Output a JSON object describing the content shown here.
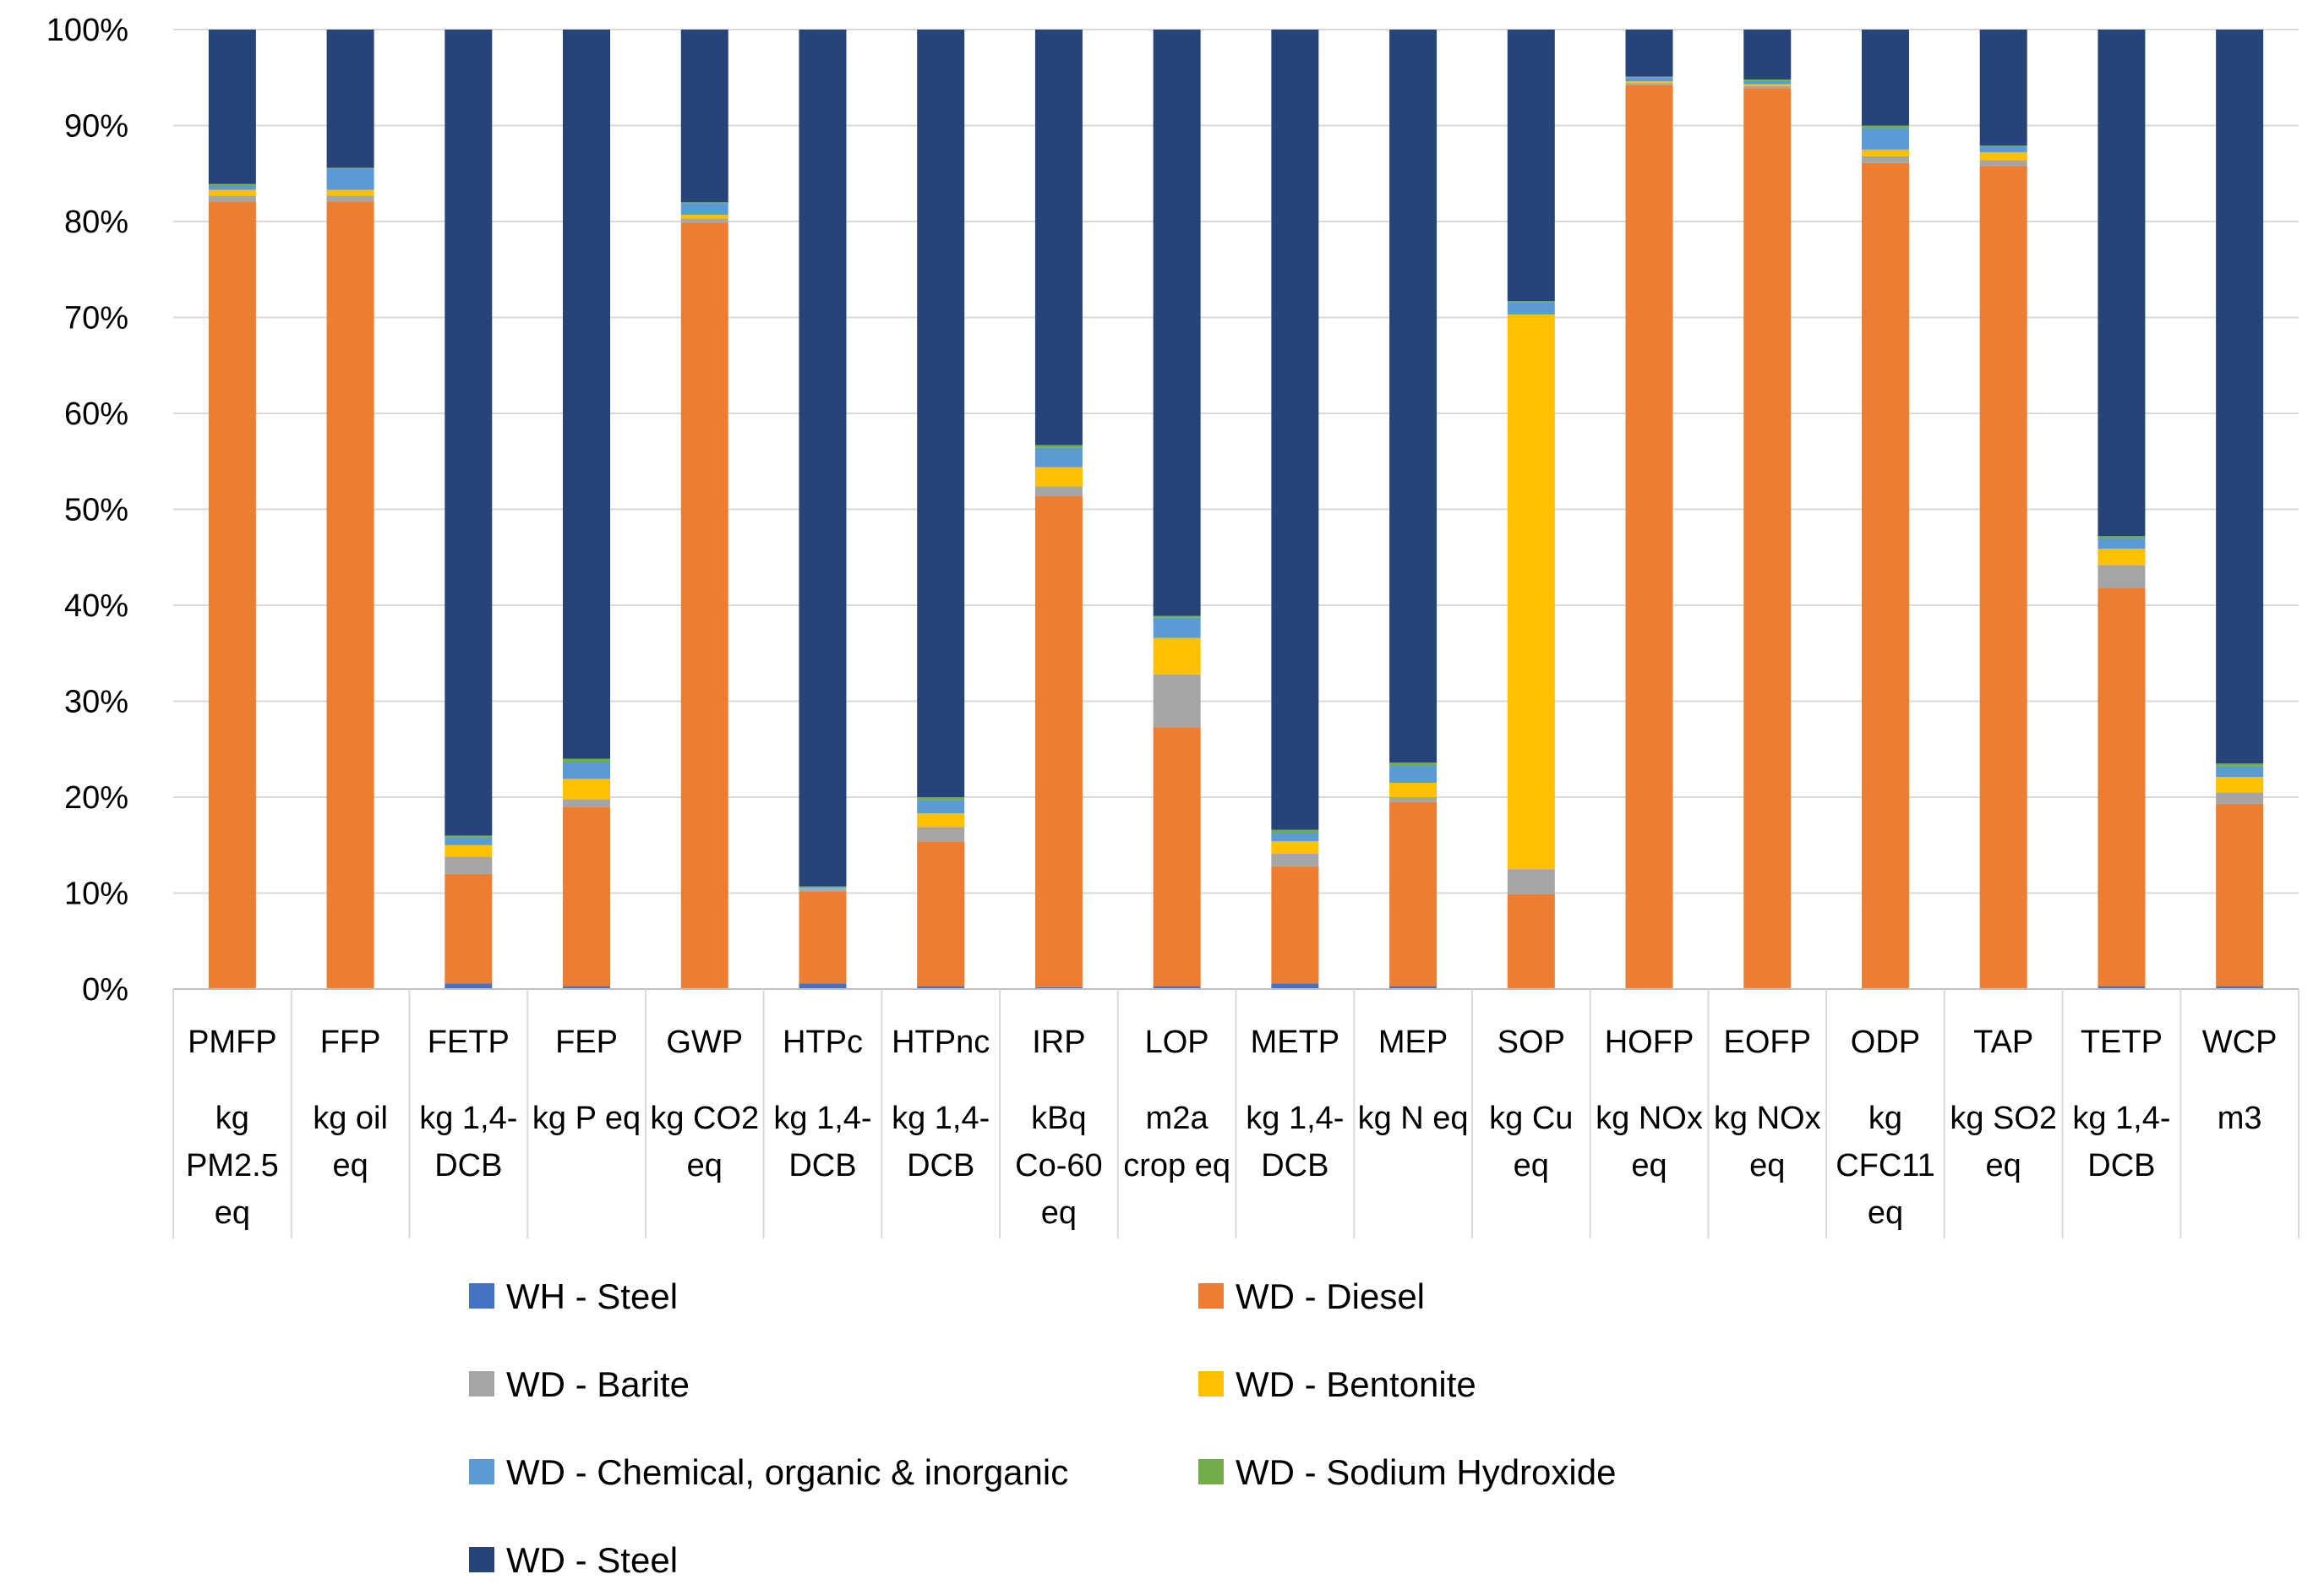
{
  "chart_data": {
    "type": "bar",
    "stacked": true,
    "percent": true,
    "title": "",
    "xlabel": "",
    "ylabel": "",
    "ylim": [
      0,
      100
    ],
    "yticks": [
      "0%",
      "10%",
      "20%",
      "30%",
      "40%",
      "50%",
      "60%",
      "70%",
      "80%",
      "90%",
      "100%"
    ],
    "grid": true,
    "legend_position": "bottom",
    "categories": [
      {
        "code": "PMFP",
        "unit": [
          "kg",
          "PM2.5",
          "eq"
        ]
      },
      {
        "code": "FFP",
        "unit": [
          "kg oil",
          "eq"
        ]
      },
      {
        "code": "FETP",
        "unit": [
          "kg 1,4-",
          "DCB"
        ]
      },
      {
        "code": "FEP",
        "unit": [
          "kg P eq"
        ]
      },
      {
        "code": "GWP",
        "unit": [
          "kg CO2",
          "eq"
        ]
      },
      {
        "code": "HTPc",
        "unit": [
          "kg 1,4-",
          "DCB"
        ]
      },
      {
        "code": "HTPnc",
        "unit": [
          "kg 1,4-",
          "DCB"
        ]
      },
      {
        "code": "IRP",
        "unit": [
          "kBq",
          "Co-60",
          "eq"
        ]
      },
      {
        "code": "LOP",
        "unit": [
          "m2a",
          "crop eq"
        ]
      },
      {
        "code": "METP",
        "unit": [
          "kg 1,4-",
          "DCB"
        ]
      },
      {
        "code": "MEP",
        "unit": [
          "kg N eq"
        ]
      },
      {
        "code": "SOP",
        "unit": [
          "kg Cu",
          "eq"
        ]
      },
      {
        "code": "HOFP",
        "unit": [
          "kg NOx",
          "eq"
        ]
      },
      {
        "code": "EOFP",
        "unit": [
          "kg NOx",
          "eq"
        ]
      },
      {
        "code": "ODP",
        "unit": [
          "kg",
          "CFC11",
          "eq"
        ]
      },
      {
        "code": "TAP",
        "unit": [
          "kg SO2",
          "eq"
        ]
      },
      {
        "code": "TETP",
        "unit": [
          "kg 1,4-",
          "DCB"
        ]
      },
      {
        "code": "WCP",
        "unit": [
          "m3"
        ]
      }
    ],
    "series": [
      {
        "name": "WH - Steel",
        "color": "#4472C4",
        "values": [
          0.1,
          0.1,
          0.6,
          0.3,
          0.1,
          0.6,
          0.3,
          0.2,
          0.3,
          0.6,
          0.3,
          0.1,
          0.1,
          0.1,
          0.1,
          0.1,
          0.3,
          0.3
        ]
      },
      {
        "name": "WD - Diesel",
        "color": "#ED7D31",
        "values": [
          82.0,
          82.0,
          11.4,
          18.7,
          79.8,
          9.6,
          15.1,
          51.2,
          27.0,
          12.2,
          19.2,
          9.8,
          94.1,
          93.8,
          86.0,
          85.7,
          41.5,
          19.0
        ]
      },
      {
        "name": "WD - Barite",
        "color": "#A5A5A5",
        "values": [
          0.6,
          0.6,
          1.8,
          0.8,
          0.4,
          0.2,
          1.5,
          1.0,
          5.5,
          1.3,
          0.5,
          2.6,
          0.2,
          0.2,
          0.7,
          0.6,
          2.4,
          1.2
        ]
      },
      {
        "name": "WD - Bentonite",
        "color": "#FFC000",
        "values": [
          0.6,
          0.6,
          1.2,
          2.1,
          0.4,
          0.1,
          1.4,
          2.0,
          3.8,
          1.3,
          1.5,
          57.8,
          0.2,
          0.2,
          0.7,
          0.8,
          1.7,
          1.6
        ]
      },
      {
        "name": "WD - Chemical, organic & inorganic",
        "color": "#5B9BD5",
        "values": [
          0.5,
          2.2,
          0.8,
          1.8,
          1.2,
          0.1,
          1.4,
          2.0,
          2.1,
          0.9,
          1.8,
          1.3,
          0.4,
          0.4,
          2.2,
          0.6,
          1.1,
          1.1
        ]
      },
      {
        "name": "WD - Sodium Hydroxide",
        "color": "#70AD47",
        "values": [
          0.1,
          0.1,
          0.2,
          0.3,
          0.1,
          0.1,
          0.3,
          0.3,
          0.2,
          0.3,
          0.3,
          0.1,
          0.1,
          0.1,
          0.3,
          0.1,
          0.2,
          0.3
        ]
      },
      {
        "name": "WD - Steel",
        "color": "#264478",
        "values": [
          16.1,
          14.4,
          84.0,
          76.0,
          18.0,
          89.3,
          80.0,
          43.3,
          61.1,
          83.4,
          76.4,
          28.3,
          4.9,
          5.2,
          10.0,
          12.1,
          52.8,
          76.5
        ]
      }
    ]
  }
}
